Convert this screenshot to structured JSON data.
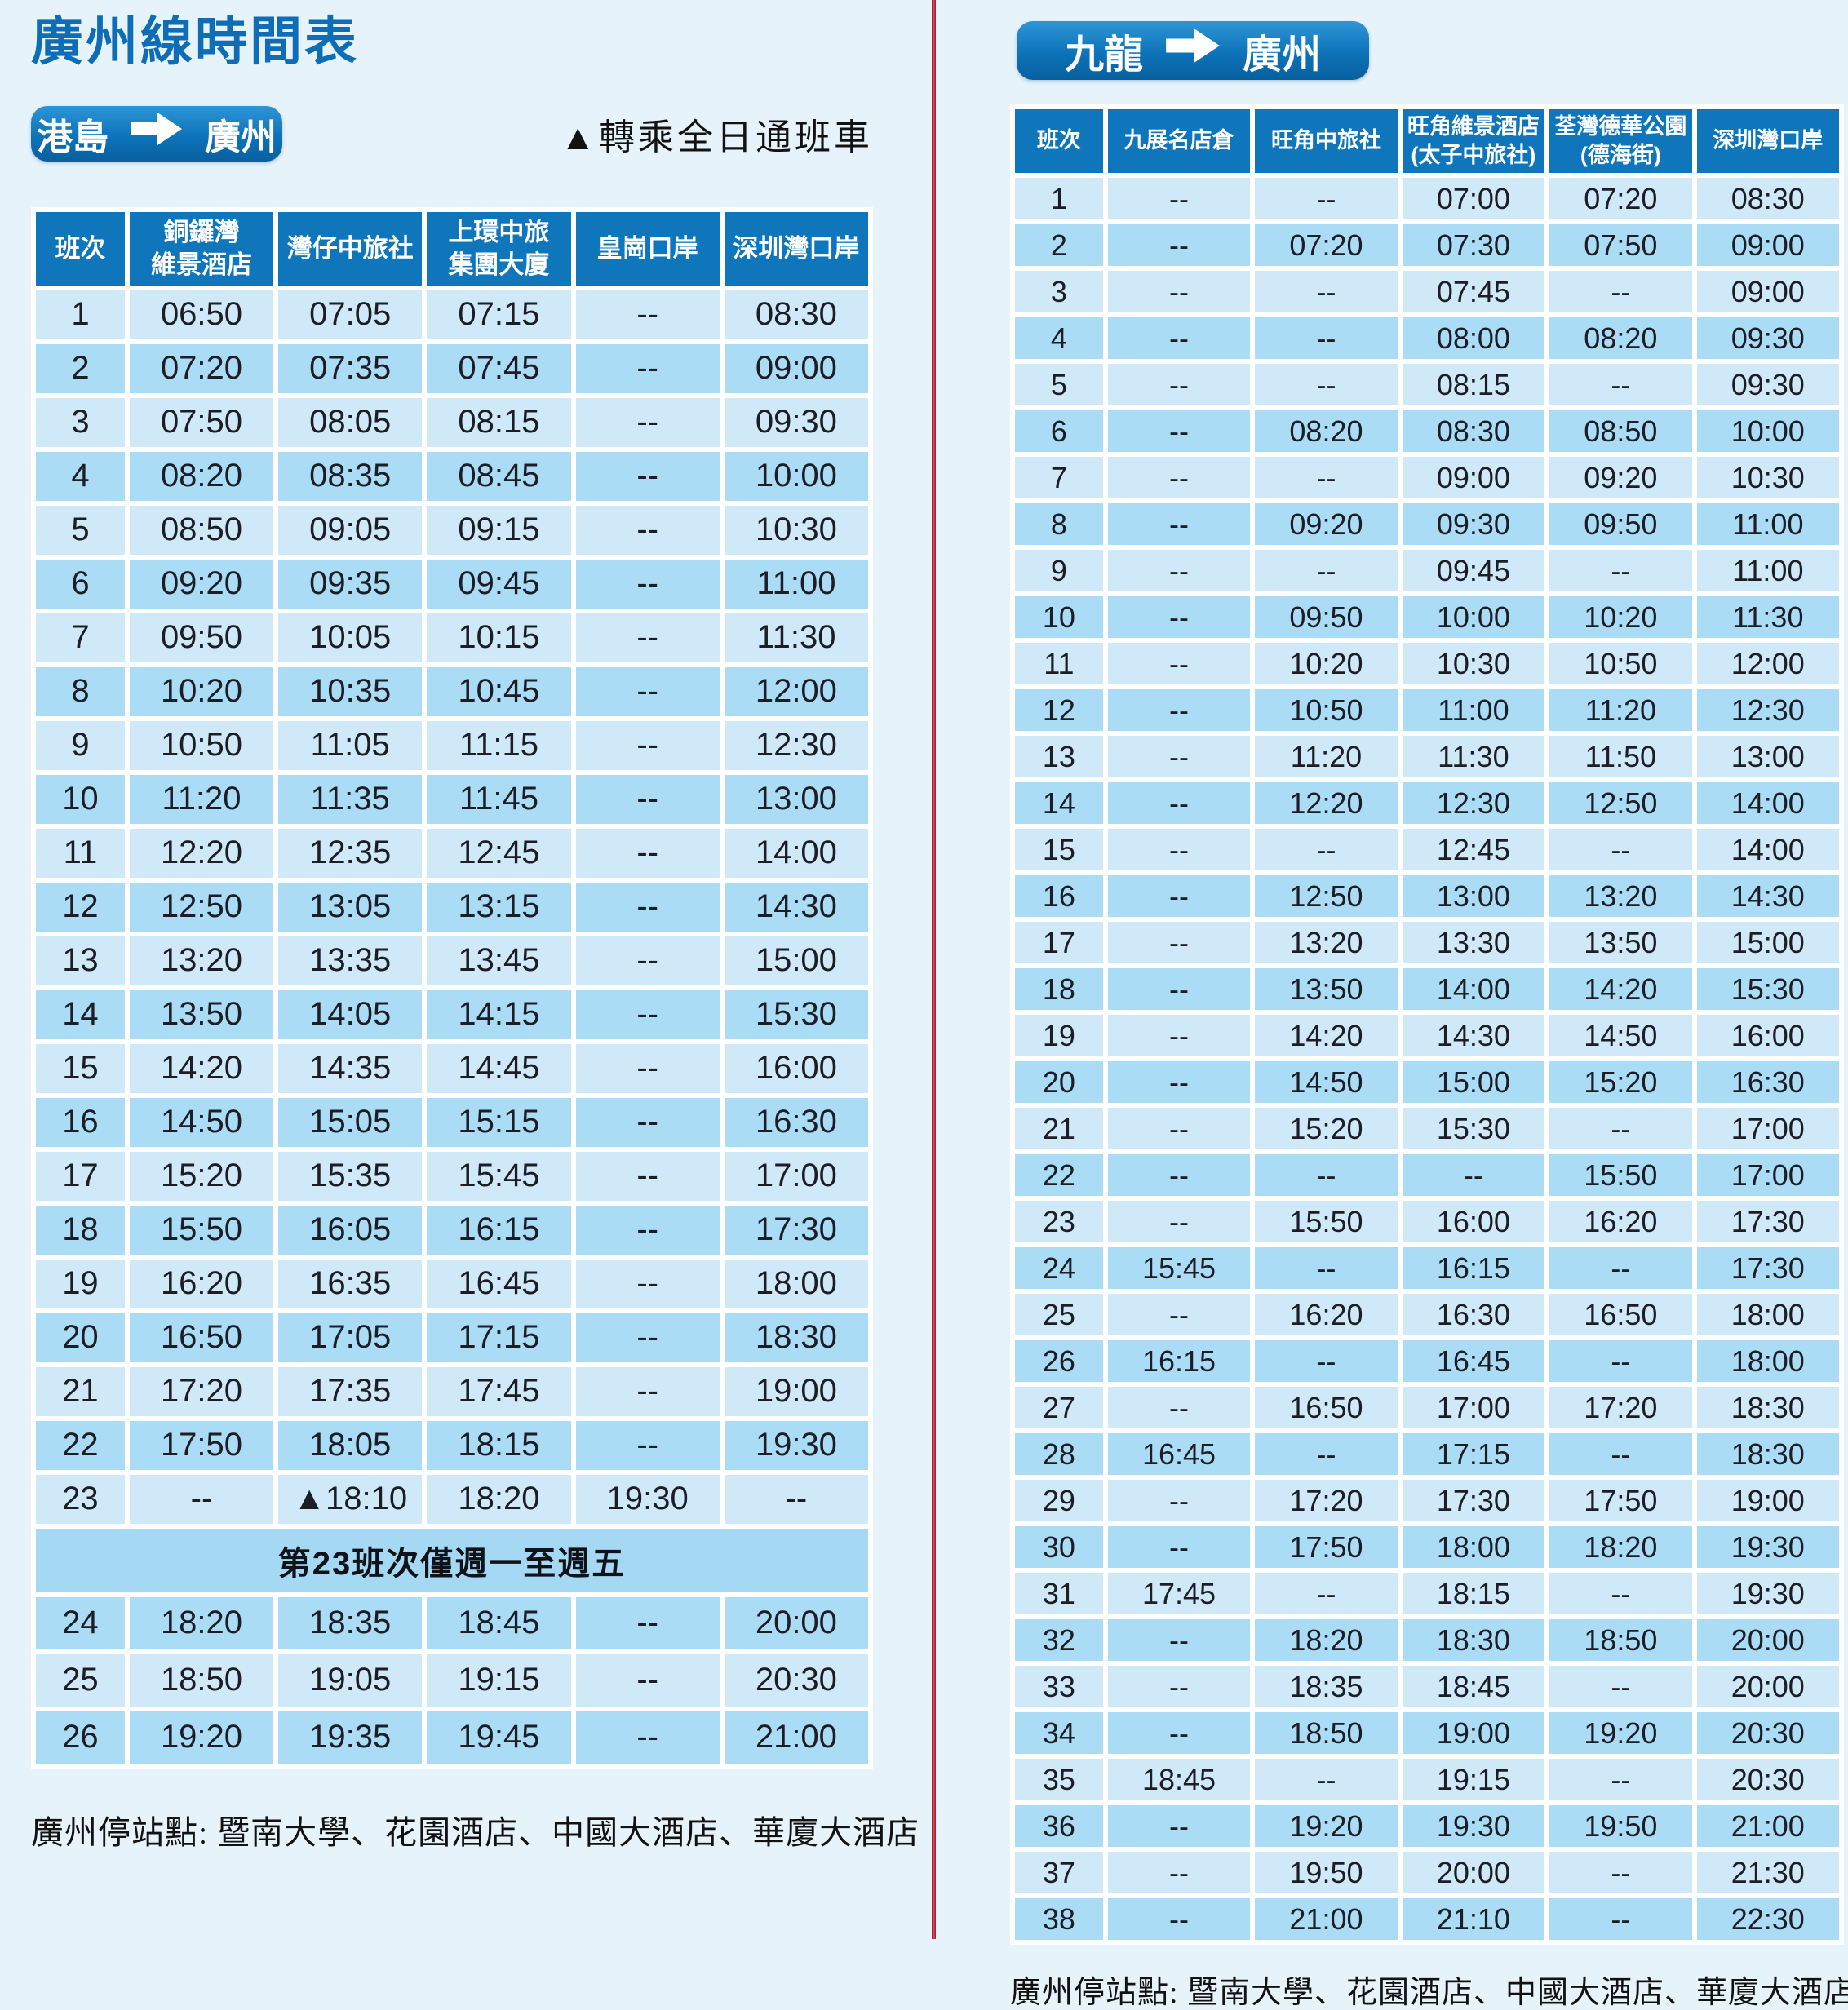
{
  "title": "廣州線時間表",
  "notes": {
    "transfer_marker": "▲",
    "transfer_text": "轉乘全日通班車",
    "stops_note": "廣州停站點: 暨南大學、花園酒店、中國大酒店、華廈大酒店"
  },
  "colors": {
    "background": "#e7f3fb",
    "header_blue": "#0f76bb",
    "title_blue": "#0e6db6",
    "row_light": "#cfe9f9",
    "row_dark": "#abdcf6",
    "divider_red": "#c01e35"
  },
  "left_table": {
    "route_from": "港島",
    "route_to": "廣州",
    "headers": [
      [
        "班次"
      ],
      [
        "銅鑼灣",
        "維景酒店"
      ],
      [
        "灣仔中旅社"
      ],
      [
        "上環中旅",
        "集團大廈"
      ],
      [
        "皇崗口岸"
      ],
      [
        "深圳灣口岸"
      ]
    ],
    "rows": [
      [
        "1",
        "06:50",
        "07:05",
        "07:15",
        "--",
        "08:30"
      ],
      [
        "2",
        "07:20",
        "07:35",
        "07:45",
        "--",
        "09:00"
      ],
      [
        "3",
        "07:50",
        "08:05",
        "08:15",
        "--",
        "09:30"
      ],
      [
        "4",
        "08:20",
        "08:35",
        "08:45",
        "--",
        "10:00"
      ],
      [
        "5",
        "08:50",
        "09:05",
        "09:15",
        "--",
        "10:30"
      ],
      [
        "6",
        "09:20",
        "09:35",
        "09:45",
        "--",
        "11:00"
      ],
      [
        "7",
        "09:50",
        "10:05",
        "10:15",
        "--",
        "11:30"
      ],
      [
        "8",
        "10:20",
        "10:35",
        "10:45",
        "--",
        "12:00"
      ],
      [
        "9",
        "10:50",
        "11:05",
        "11:15",
        "--",
        "12:30"
      ],
      [
        "10",
        "11:20",
        "11:35",
        "11:45",
        "--",
        "13:00"
      ],
      [
        "11",
        "12:20",
        "12:35",
        "12:45",
        "--",
        "14:00"
      ],
      [
        "12",
        "12:50",
        "13:05",
        "13:15",
        "--",
        "14:30"
      ],
      [
        "13",
        "13:20",
        "13:35",
        "13:45",
        "--",
        "15:00"
      ],
      [
        "14",
        "13:50",
        "14:05",
        "14:15",
        "--",
        "15:30"
      ],
      [
        "15",
        "14:20",
        "14:35",
        "14:45",
        "--",
        "16:00"
      ],
      [
        "16",
        "14:50",
        "15:05",
        "15:15",
        "--",
        "16:30"
      ],
      [
        "17",
        "15:20",
        "15:35",
        "15:45",
        "--",
        "17:00"
      ],
      [
        "18",
        "15:50",
        "16:05",
        "16:15",
        "--",
        "17:30"
      ],
      [
        "19",
        "16:20",
        "16:35",
        "16:45",
        "--",
        "18:00"
      ],
      [
        "20",
        "16:50",
        "17:05",
        "17:15",
        "--",
        "18:30"
      ],
      [
        "21",
        "17:20",
        "17:35",
        "17:45",
        "--",
        "19:00"
      ],
      [
        "22",
        "17:50",
        "18:05",
        "18:15",
        "--",
        "19:30"
      ],
      [
        "23",
        "--",
        "▲18:10",
        "18:20",
        "19:30",
        "--"
      ],
      [
        "24",
        "18:20",
        "18:35",
        "18:45",
        "--",
        "20:00"
      ],
      [
        "25",
        "18:50",
        "19:05",
        "19:15",
        "--",
        "20:30"
      ],
      [
        "26",
        "19:20",
        "19:35",
        "19:45",
        "--",
        "21:00"
      ]
    ],
    "special_note": "第23班次僅週一至週五",
    "note_after_trip": 23
  },
  "right_table": {
    "route_from": "九龍",
    "route_to": "廣州",
    "headers": [
      [
        "班次"
      ],
      [
        "九展名店倉"
      ],
      [
        "旺角中旅社"
      ],
      [
        "旺角維景酒店",
        "(太子中旅社)"
      ],
      [
        "荃灣德華公園",
        "(德海街)"
      ],
      [
        "深圳灣口岸"
      ]
    ],
    "rows": [
      [
        "1",
        "--",
        "--",
        "07:00",
        "07:20",
        "08:30"
      ],
      [
        "2",
        "--",
        "07:20",
        "07:30",
        "07:50",
        "09:00"
      ],
      [
        "3",
        "--",
        "--",
        "07:45",
        "--",
        "09:00"
      ],
      [
        "4",
        "--",
        "--",
        "08:00",
        "08:20",
        "09:30"
      ],
      [
        "5",
        "--",
        "--",
        "08:15",
        "--",
        "09:30"
      ],
      [
        "6",
        "--",
        "08:20",
        "08:30",
        "08:50",
        "10:00"
      ],
      [
        "7",
        "--",
        "--",
        "09:00",
        "09:20",
        "10:30"
      ],
      [
        "8",
        "--",
        "09:20",
        "09:30",
        "09:50",
        "11:00"
      ],
      [
        "9",
        "--",
        "--",
        "09:45",
        "--",
        "11:00"
      ],
      [
        "10",
        "--",
        "09:50",
        "10:00",
        "10:20",
        "11:30"
      ],
      [
        "11",
        "--",
        "10:20",
        "10:30",
        "10:50",
        "12:00"
      ],
      [
        "12",
        "--",
        "10:50",
        "11:00",
        "11:20",
        "12:30"
      ],
      [
        "13",
        "--",
        "11:20",
        "11:30",
        "11:50",
        "13:00"
      ],
      [
        "14",
        "--",
        "12:20",
        "12:30",
        "12:50",
        "14:00"
      ],
      [
        "15",
        "--",
        "--",
        "12:45",
        "--",
        "14:00"
      ],
      [
        "16",
        "--",
        "12:50",
        "13:00",
        "13:20",
        "14:30"
      ],
      [
        "17",
        "--",
        "13:20",
        "13:30",
        "13:50",
        "15:00"
      ],
      [
        "18",
        "--",
        "13:50",
        "14:00",
        "14:20",
        "15:30"
      ],
      [
        "19",
        "--",
        "14:20",
        "14:30",
        "14:50",
        "16:00"
      ],
      [
        "20",
        "--",
        "14:50",
        "15:00",
        "15:20",
        "16:30"
      ],
      [
        "21",
        "--",
        "15:20",
        "15:30",
        "--",
        "17:00"
      ],
      [
        "22",
        "--",
        "--",
        "--",
        "15:50",
        "17:00"
      ],
      [
        "23",
        "--",
        "15:50",
        "16:00",
        "16:20",
        "17:30"
      ],
      [
        "24",
        "15:45",
        "--",
        "16:15",
        "--",
        "17:30"
      ],
      [
        "25",
        "--",
        "16:20",
        "16:30",
        "16:50",
        "18:00"
      ],
      [
        "26",
        "16:15",
        "--",
        "16:45",
        "--",
        "18:00"
      ],
      [
        "27",
        "--",
        "16:50",
        "17:00",
        "17:20",
        "18:30"
      ],
      [
        "28",
        "16:45",
        "--",
        "17:15",
        "--",
        "18:30"
      ],
      [
        "29",
        "--",
        "17:20",
        "17:30",
        "17:50",
        "19:00"
      ],
      [
        "30",
        "--",
        "17:50",
        "18:00",
        "18:20",
        "19:30"
      ],
      [
        "31",
        "17:45",
        "--",
        "18:15",
        "--",
        "19:30"
      ],
      [
        "32",
        "--",
        "18:20",
        "18:30",
        "18:50",
        "20:00"
      ],
      [
        "33",
        "--",
        "18:35",
        "18:45",
        "--",
        "20:00"
      ],
      [
        "34",
        "--",
        "18:50",
        "19:00",
        "19:20",
        "20:30"
      ],
      [
        "35",
        "18:45",
        "--",
        "19:15",
        "--",
        "20:30"
      ],
      [
        "36",
        "--",
        "19:20",
        "19:30",
        "19:50",
        "21:00"
      ],
      [
        "37",
        "--",
        "19:50",
        "20:00",
        "--",
        "21:30"
      ],
      [
        "38",
        "--",
        "21:00",
        "21:10",
        "--",
        "22:30"
      ]
    ]
  }
}
